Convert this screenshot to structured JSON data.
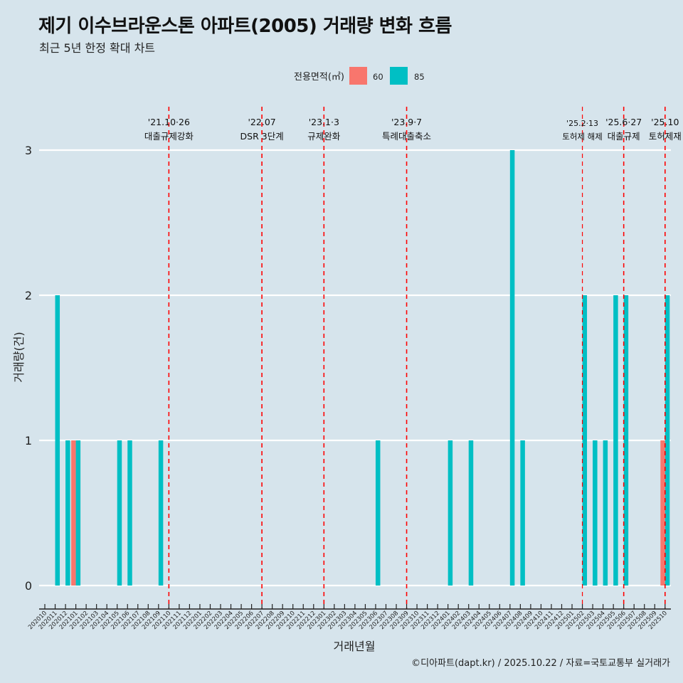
{
  "title": "제기 이수브라운스톤 아파트(2005) 거래량 변화 흐름",
  "subtitle": "최근 5년 한정 확대 차트",
  "caption": "©디아파트(dapt.kr) / 2025.10.22 / 자료=국토교통부 실거래가",
  "colors": {
    "60": "#f8766d",
    "85": "#00bfc4",
    "vline": "#ff0000",
    "grid": "#ffffff"
  },
  "chart_data": {
    "type": "bar",
    "xlabel": "거래년월",
    "ylabel": "거래량(건)",
    "ylim": [
      0,
      3
    ],
    "yticks": [
      0,
      1,
      2,
      3
    ],
    "legend": {
      "title": "전용면적(㎡)",
      "entries": [
        "60",
        "85"
      ],
      "placement": "top"
    },
    "categories": [
      "202010",
      "202011",
      "202012",
      "202101",
      "202102",
      "202103",
      "202104",
      "202105",
      "202106",
      "202107",
      "202108",
      "202109",
      "202110",
      "202111",
      "202112",
      "202201",
      "202202",
      "202203",
      "202204",
      "202205",
      "202206",
      "202207",
      "202208",
      "202209",
      "202210",
      "202211",
      "202212",
      "202301",
      "202302",
      "202303",
      "202304",
      "202305",
      "202306",
      "202307",
      "202308",
      "202309",
      "202310",
      "202311",
      "202312",
      "202401",
      "202402",
      "202403",
      "202404",
      "202405",
      "202406",
      "202407",
      "202408",
      "202409",
      "202410",
      "202411",
      "202412",
      "202501",
      "202502",
      "202503",
      "202504",
      "202505",
      "202506",
      "202507",
      "202508",
      "202509",
      "202510"
    ],
    "series": [
      {
        "name": "60",
        "values": {
          "202101": 1,
          "202510": 1
        }
      },
      {
        "name": "85",
        "values": {
          "202011": 2,
          "202012": 1,
          "202101": 1,
          "202105": 1,
          "202106": 1,
          "202109": 1,
          "202306": 1,
          "202401": 1,
          "202403": 1,
          "202407": 3,
          "202408": 1,
          "202502": 2,
          "202503": 1,
          "202504": 1,
          "202505": 2,
          "202506": 2,
          "202510": 2
        }
      }
    ],
    "annotations": [
      {
        "month": "202110",
        "date": "'21.10·26",
        "label": "대출규제강화"
      },
      {
        "month": "202207",
        "date": "'22.07",
        "label": "DSR 3단계"
      },
      {
        "month": "202301",
        "date": "'23.1·3",
        "label": "규제완화"
      },
      {
        "month": "202309",
        "date": "'23.9·7",
        "label": "특례대출축소"
      },
      {
        "month": "202502",
        "date": "'25.2·13",
        "label": "토허제 해제",
        "small": true
      },
      {
        "month": "202506",
        "date": "'25.6·27",
        "label": "대출규제"
      },
      {
        "month": "202510",
        "date": "'25.10",
        "label": "토허제재"
      }
    ]
  }
}
